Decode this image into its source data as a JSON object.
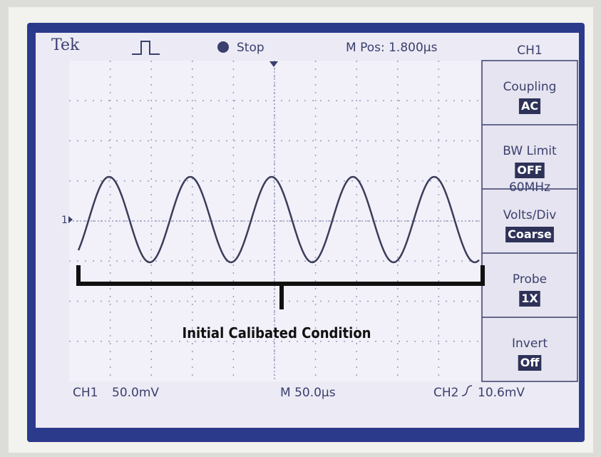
{
  "header": {
    "brand": "Tek",
    "status": "Stop",
    "position": "M Pos: 1.800µs",
    "channel": "CH1"
  },
  "menu": [
    {
      "label": "Coupling",
      "setting": "AC"
    },
    {
      "label": "BW Limit",
      "setting": "OFF",
      "detail": "60MHz"
    },
    {
      "label": "Volts/Div",
      "setting": "Coarse"
    },
    {
      "label": "Probe",
      "setting": "1X"
    },
    {
      "label": "Invert",
      "setting": "Off"
    }
  ],
  "marker": "1",
  "footer": {
    "ch1": "CH1",
    "ch1_scale": "50.0mV",
    "timebase": "M 50.0µs",
    "ch2": "CH2",
    "trigger_level": "10.6mV"
  },
  "annotation": "Initial Calibated Condition"
}
